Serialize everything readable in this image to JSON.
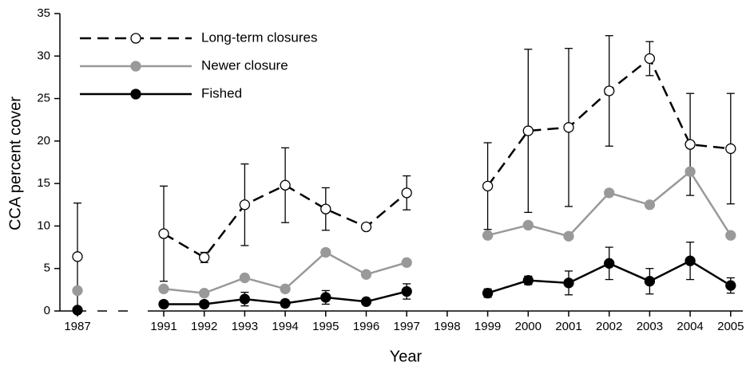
{
  "chart_data": {
    "type": "line",
    "x_label": "Year",
    "y_label": "CCA percent cover",
    "categories": [
      "1987",
      null,
      "1991",
      "1992",
      "1993",
      "1994",
      "1995",
      "1996",
      "1997",
      "1998",
      "1999",
      "2000",
      "2001",
      "2002",
      "2003",
      "2004",
      "2005"
    ],
    "series": [
      {
        "name": "Long-term closures",
        "color": "#000000",
        "linestyle": "dashed",
        "marker_fill": "#ffffff",
        "values": [
          6.4,
          null,
          9.1,
          6.3,
          12.5,
          14.8,
          12.0,
          9.9,
          13.9,
          null,
          14.7,
          21.2,
          21.6,
          25.9,
          29.7,
          19.6,
          19.1
        ],
        "errors": [
          6.3,
          null,
          5.6,
          0.6,
          4.8,
          4.4,
          2.5,
          0.2,
          2.0,
          null,
          5.1,
          9.6,
          9.3,
          6.5,
          2.0,
          6.0,
          6.5
        ]
      },
      {
        "name": "Newer closure",
        "color": "#999999",
        "linestyle": "solid",
        "marker_fill": "#999999",
        "values": [
          2.4,
          null,
          2.6,
          2.1,
          3.9,
          2.6,
          6.9,
          4.3,
          5.7,
          null,
          8.9,
          10.1,
          8.8,
          13.9,
          12.5,
          16.4,
          8.9
        ]
      },
      {
        "name": "Fished",
        "color": "#000000",
        "linestyle": "solid",
        "marker_fill": "#000000",
        "values": [
          0.1,
          null,
          0.8,
          0.8,
          1.4,
          0.9,
          1.6,
          1.1,
          2.3,
          null,
          2.1,
          3.6,
          3.3,
          5.6,
          3.5,
          5.9,
          3.0
        ],
        "errors": [
          null,
          null,
          null,
          null,
          0.8,
          0.4,
          0.8,
          0.3,
          0.9,
          null,
          0.5,
          0.5,
          1.4,
          1.9,
          1.5,
          2.2,
          0.9
        ]
      }
    ],
    "ylim": [
      0,
      35
    ],
    "yticks": [
      0,
      5,
      10,
      15,
      20,
      25,
      30,
      35
    ],
    "grid": false,
    "legend": "upper left"
  }
}
